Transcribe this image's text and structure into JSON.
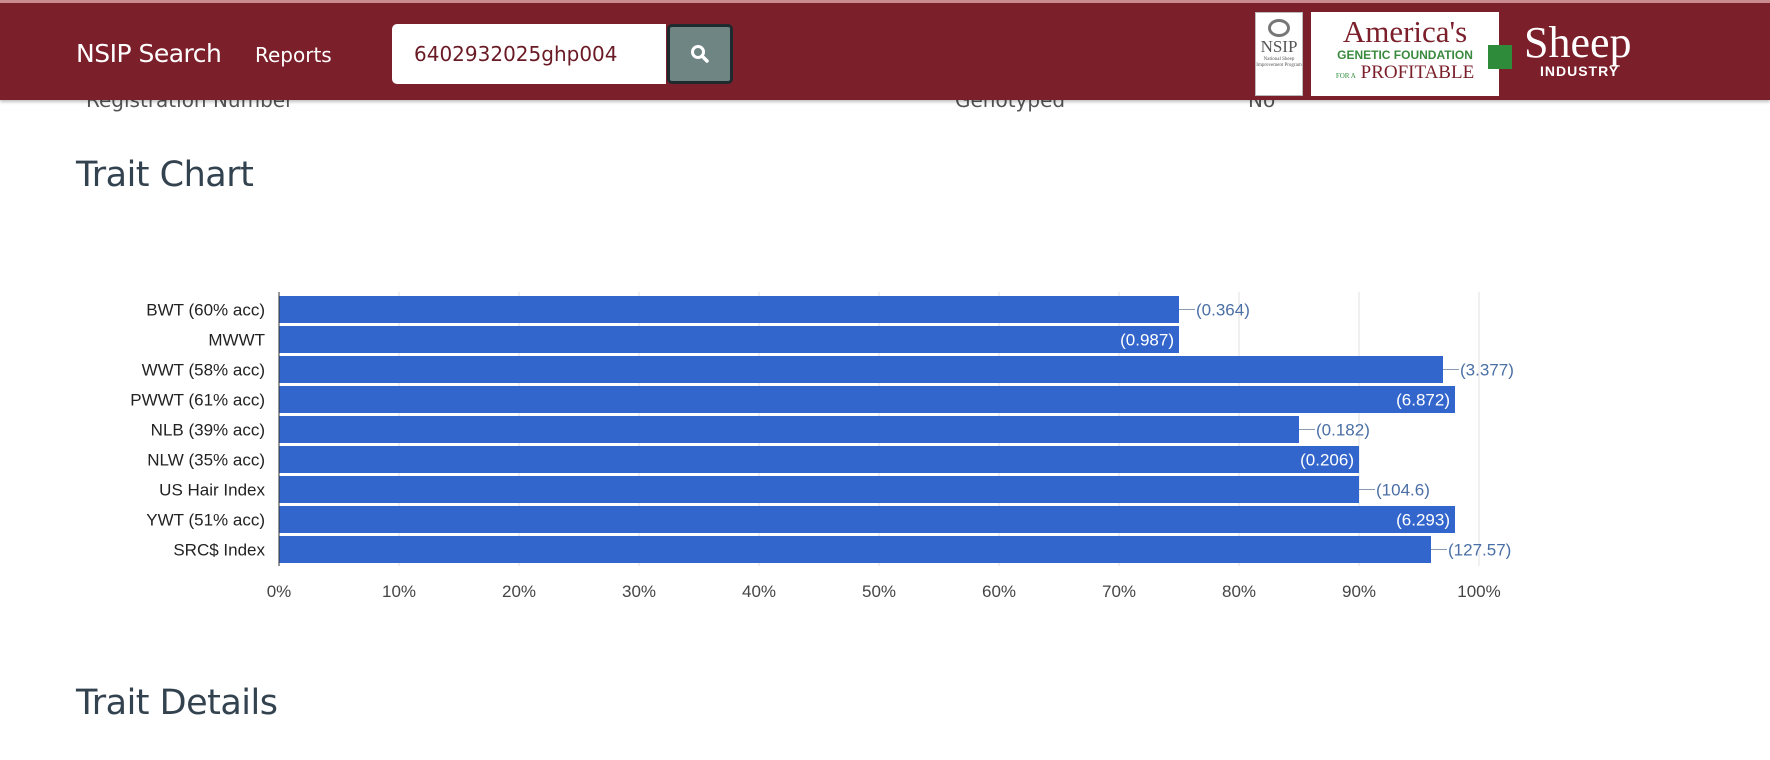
{
  "header": {
    "brand": "NSIP Search",
    "nav_reports": "Reports",
    "search_value": "6402932025ghp004",
    "search_icon": "search-icon",
    "logo": {
      "nsip": "NSIP",
      "nsip_sub": "National Sheep Improvement Program",
      "americas": "America's",
      "genetic": "GENETIC FOUNDATION",
      "fora": "FOR A",
      "profitable": "PROFITABLE",
      "sheep": "Sheep",
      "industry": "INDUSTRY"
    }
  },
  "partial_row": {
    "registration_label": "Registration Number",
    "genotyped_label": "Genotyped",
    "genotyped_value": "No"
  },
  "sections": {
    "trait_chart": "Trait Chart",
    "trait_details": "Trait Details"
  },
  "colors": {
    "header": "#7b1f2a",
    "bar": "#3366cc"
  },
  "chart_data": {
    "type": "bar",
    "orientation": "horizontal",
    "grid": true,
    "xlim": [
      0,
      100
    ],
    "categories": [
      "BWT (60% acc)",
      "MWWT",
      "WWT (58% acc)",
      "PWWT (61% acc)",
      "NLB (39% acc)",
      "NLW (35% acc)",
      "US Hair Index",
      "YWT (51% acc)",
      "SRC$ Index"
    ],
    "values": [
      75,
      75,
      97,
      98,
      85,
      90,
      90,
      98,
      96
    ],
    "labels": [
      "(0.364)",
      "(0.987)",
      "(3.377)",
      "(6.872)",
      "(0.182)",
      "(0.206)",
      "(104.6)",
      "(6.293)",
      "(127.57)"
    ],
    "label_inside": [
      false,
      true,
      false,
      true,
      false,
      true,
      false,
      true,
      false
    ],
    "xticks": [
      "0%",
      "10%",
      "20%",
      "30%",
      "40%",
      "50%",
      "60%",
      "70%",
      "80%",
      "90%",
      "100%"
    ]
  }
}
